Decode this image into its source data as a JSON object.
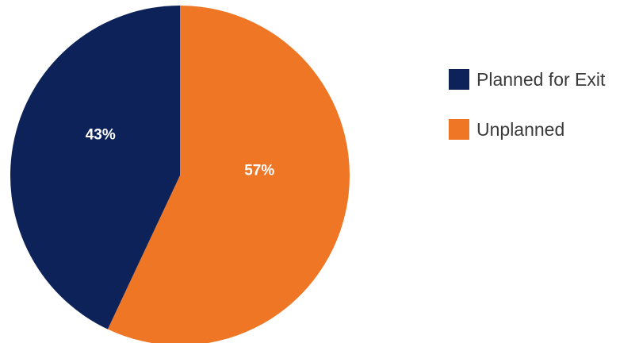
{
  "chart_data": {
    "type": "pie",
    "title": "",
    "start": "top",
    "direction": "clockwise",
    "order": "second-slice-first",
    "slices": [
      {
        "name": "Planned for Exit",
        "value": 43,
        "label": "43%",
        "color": "#0c2259"
      },
      {
        "name": "Unplanned",
        "value": 57,
        "label": "57%",
        "color": "#ee7625"
      }
    ],
    "legend": {
      "position": "right",
      "items": [
        {
          "label": "Planned for Exit",
          "color": "#0c2259"
        },
        {
          "label": "Unplanned",
          "color": "#ee7625"
        }
      ]
    }
  }
}
